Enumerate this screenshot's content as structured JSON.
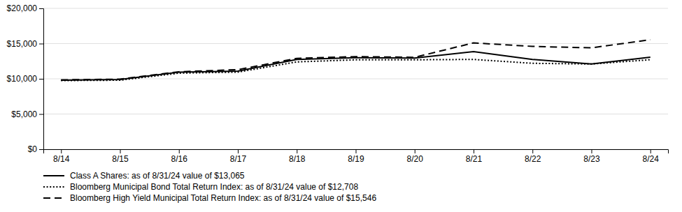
{
  "chart_data": {
    "type": "line",
    "categories": [
      "8/14",
      "8/15",
      "8/16",
      "8/17",
      "8/18",
      "8/19",
      "8/20",
      "8/21",
      "8/22",
      "8/23",
      "8/24"
    ],
    "series": [
      {
        "name": "Class A Shares: as of 8/31/24 value of $13,065",
        "color": "#000000",
        "line_style": "solid",
        "values": [
          9800,
          9900,
          10950,
          11100,
          12750,
          13000,
          12950,
          13850,
          12750,
          12100,
          13065
        ]
      },
      {
        "name": "Bloomberg Municipal Bond Total Return Index: as of 8/31/24 value of $12,708",
        "color": "#000000",
        "line_style": "dotted",
        "values": [
          9750,
          9800,
          10800,
          10950,
          12400,
          12700,
          12700,
          12750,
          12200,
          12100,
          12708
        ]
      },
      {
        "name": "Bloomberg High Yield Municipal Total Return Index: as of 8/31/24 value of $15,546",
        "color": "#000000",
        "line_style": "dashed",
        "values": [
          9850,
          9950,
          11000,
          11300,
          12900,
          13150,
          13050,
          15100,
          14600,
          14400,
          15546
        ]
      }
    ],
    "ylim": [
      0,
      20000
    ],
    "yticks": [
      {
        "value": 0,
        "label": "$0"
      },
      {
        "value": 5000,
        "label": "$5,000"
      },
      {
        "value": 10000,
        "label": "$10,000"
      },
      {
        "value": 15000,
        "label": "$15,000"
      },
      {
        "value": 20000,
        "label": "$20,000"
      }
    ],
    "grid": true,
    "legend": "bottom"
  }
}
